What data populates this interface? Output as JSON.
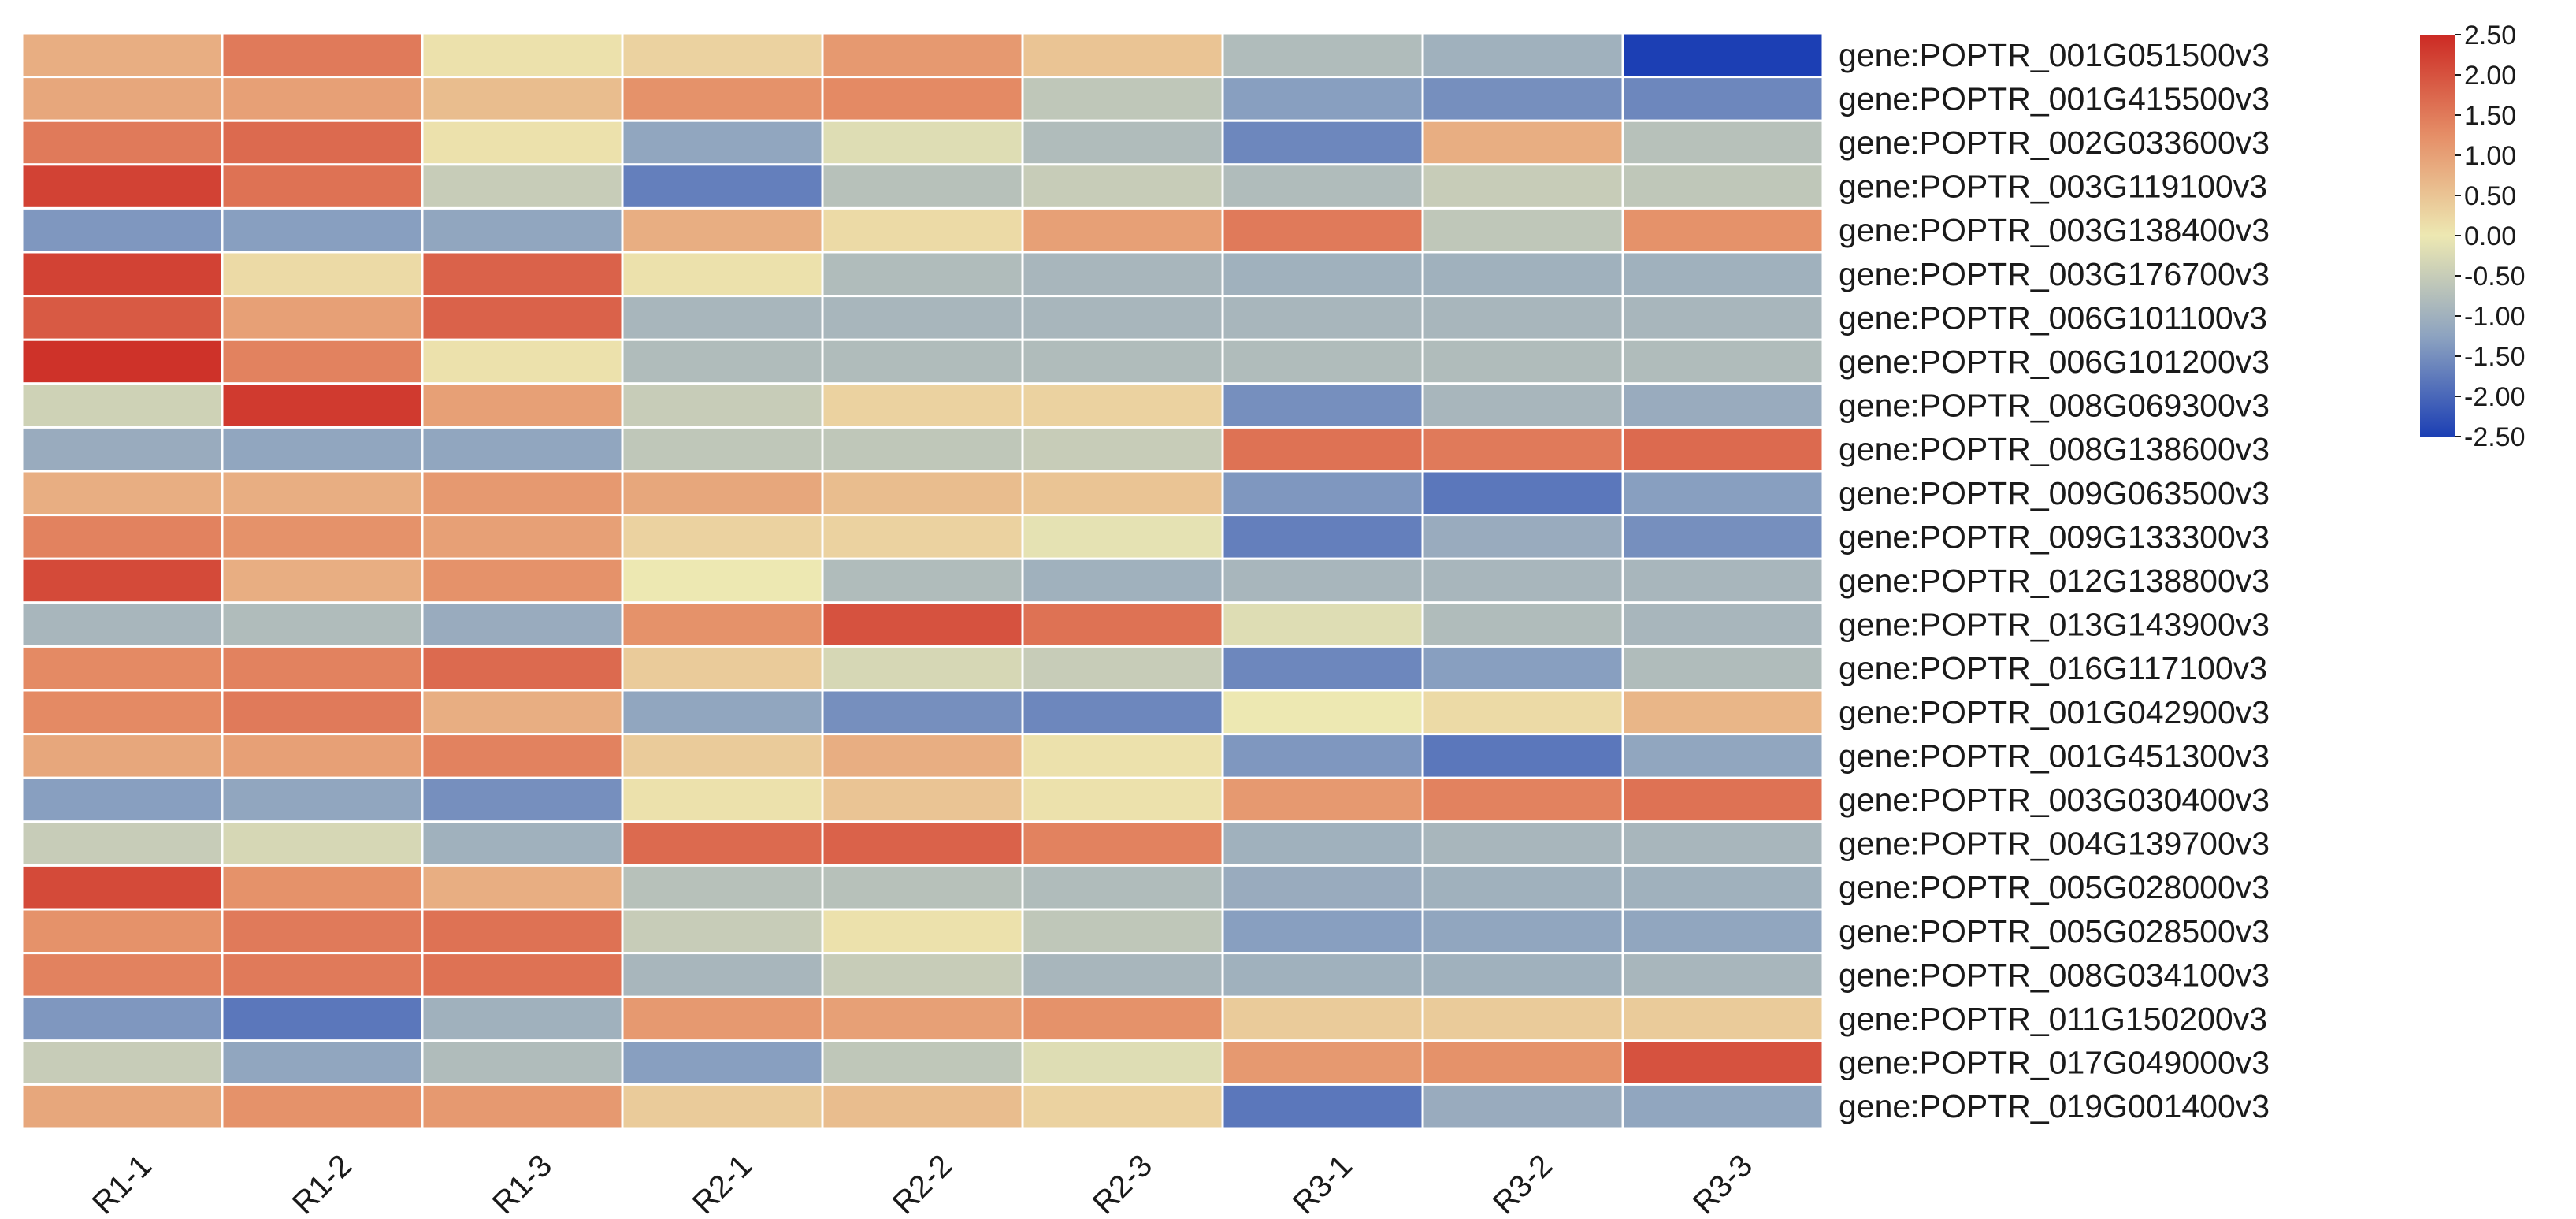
{
  "chart_data": {
    "type": "heatmap",
    "title": "",
    "columns": [
      "R1-1",
      "R1-2",
      "R1-3",
      "R2-1",
      "R2-2",
      "R2-3",
      "R3-1",
      "R3-2",
      "R3-3"
    ],
    "rows": [
      "gene:POPTR_001G051500v3",
      "gene:POPTR_001G415500v3",
      "gene:POPTR_002G033600v3",
      "gene:POPTR_003G119100v3",
      "gene:POPTR_003G138400v3",
      "gene:POPTR_003G176700v3",
      "gene:POPTR_006G101100v3",
      "gene:POPTR_006G101200v3",
      "gene:POPTR_008G069300v3",
      "gene:POPTR_008G138600v3",
      "gene:POPTR_009G063500v3",
      "gene:POPTR_009G133300v3",
      "gene:POPTR_012G138800v3",
      "gene:POPTR_013G143900v3",
      "gene:POPTR_016G117100v3",
      "gene:POPTR_001G042900v3",
      "gene:POPTR_001G451300v3",
      "gene:POPTR_003G030400v3",
      "gene:POPTR_004G139700v3",
      "gene:POPTR_005G028000v3",
      "gene:POPTR_005G028500v3",
      "gene:POPTR_008G034100v3",
      "gene:POPTR_011G150200v3",
      "gene:POPTR_017G049000v3",
      "gene:POPTR_019G001400v3"
    ],
    "values": [
      [
        0.8,
        1.5,
        0.1,
        0.3,
        1.1,
        0.5,
        -0.8,
        -1.0,
        -2.5
      ],
      [
        0.9,
        1.0,
        0.6,
        1.2,
        1.3,
        -0.6,
        -1.3,
        -1.5,
        -1.6
      ],
      [
        1.5,
        1.7,
        0.1,
        -1.2,
        -0.2,
        -0.8,
        -1.6,
        0.8,
        -0.7
      ],
      [
        2.2,
        1.6,
        -0.5,
        -1.7,
        -0.7,
        -0.5,
        -0.8,
        -0.5,
        -0.6
      ],
      [
        -1.4,
        -1.3,
        -1.2,
        0.8,
        0.2,
        1.0,
        1.5,
        -0.6,
        1.2
      ],
      [
        2.2,
        0.2,
        1.8,
        0.1,
        -0.8,
        -0.9,
        -1.0,
        -1.0,
        -1.0
      ],
      [
        1.9,
        1.0,
        1.8,
        -0.9,
        -0.9,
        -0.9,
        -0.9,
        -0.9,
        -0.9
      ],
      [
        2.4,
        1.4,
        0.1,
        -0.8,
        -0.8,
        -0.8,
        -0.8,
        -0.8,
        -0.8
      ],
      [
        -0.4,
        2.3,
        1.0,
        -0.5,
        0.3,
        0.3,
        -1.5,
        -0.9,
        -1.1
      ],
      [
        -1.1,
        -1.2,
        -1.2,
        -0.6,
        -0.6,
        -0.5,
        1.6,
        1.5,
        1.7
      ],
      [
        0.8,
        0.8,
        1.1,
        0.9,
        0.6,
        0.5,
        -1.4,
        -1.8,
        -1.3
      ],
      [
        1.4,
        1.2,
        1.0,
        0.3,
        0.3,
        -0.1,
        -1.7,
        -1.1,
        -1.5
      ],
      [
        2.1,
        0.8,
        1.2,
        0.0,
        -0.8,
        -1.0,
        -0.9,
        -0.9,
        -0.9
      ],
      [
        -0.9,
        -0.8,
        -1.1,
        1.2,
        2.0,
        1.6,
        -0.2,
        -0.8,
        -0.9
      ],
      [
        1.3,
        1.4,
        1.7,
        0.4,
        -0.3,
        -0.5,
        -1.6,
        -1.3,
        -0.8
      ],
      [
        1.3,
        1.5,
        0.8,
        -1.2,
        -1.5,
        -1.6,
        0.0,
        0.2,
        0.7
      ],
      [
        0.9,
        1.0,
        1.4,
        0.4,
        0.8,
        0.1,
        -1.4,
        -1.8,
        -1.2
      ],
      [
        -1.3,
        -1.2,
        -1.5,
        0.1,
        0.5,
        0.1,
        1.1,
        1.4,
        1.6
      ],
      [
        -0.5,
        -0.3,
        -1.0,
        1.7,
        1.8,
        1.4,
        -1.0,
        -0.9,
        -0.9
      ],
      [
        2.1,
        1.2,
        0.8,
        -0.7,
        -0.7,
        -0.8,
        -1.1,
        -1.0,
        -1.0
      ],
      [
        1.2,
        1.5,
        1.6,
        -0.5,
        0.1,
        -0.6,
        -1.3,
        -1.2,
        -1.2
      ],
      [
        1.4,
        1.5,
        1.6,
        -0.9,
        -0.5,
        -0.9,
        -1.0,
        -1.0,
        -0.9
      ],
      [
        -1.4,
        -1.8,
        -1.0,
        1.1,
        1.0,
        1.2,
        0.4,
        0.4,
        0.4
      ],
      [
        -0.5,
        -1.2,
        -0.8,
        -1.3,
        -0.6,
        -0.2,
        1.1,
        1.2,
        2.0
      ],
      [
        0.9,
        1.2,
        1.1,
        0.4,
        0.6,
        0.3,
        -1.8,
        -1.1,
        -1.2
      ]
    ],
    "colorbar": {
      "min": -2.5,
      "max": 2.5,
      "ticks": [
        "2.50",
        "2.00",
        "1.50",
        "1.00",
        "0.50",
        "0.00",
        "-0.50",
        "-1.00",
        "-1.50",
        "-2.00",
        "-2.50"
      ],
      "colors": {
        "low": "#1c3fb4",
        "mid_low": "#8da3c0",
        "mid": "#ede8b2",
        "mid_high": "#e58e67",
        "high": "#cc2a24"
      }
    },
    "xlabel": "",
    "ylabel": "",
    "legend": "right"
  }
}
